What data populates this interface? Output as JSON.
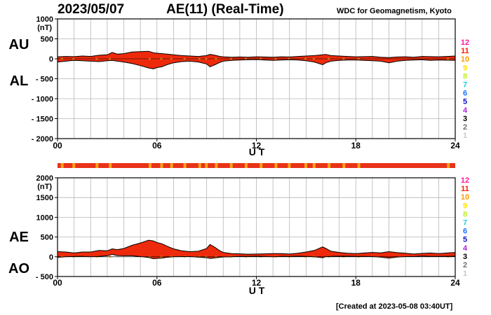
{
  "header": {
    "date": "2023/05/07",
    "title": "AE(11) (Real-Time)",
    "source": "WDC for Geomagnetism, Kyoto"
  },
  "footer": {
    "created": "[Created at 2023-05-08 03:40UT]"
  },
  "colors": {
    "fill": "#ee2a0c",
    "quality_fill": "#f7a21b",
    "bar_fill": "#e8321a"
  },
  "legend": {
    "levels": [
      {
        "label": "12",
        "color": "#ff1aa0"
      },
      {
        "label": "11",
        "color": "#ff1a00"
      },
      {
        "label": "10",
        "color": "#ff9b00"
      },
      {
        "label": "9",
        "color": "#ffe000"
      },
      {
        "label": "8",
        "color": "#c0f020"
      },
      {
        "label": "7",
        "color": "#20d0d0"
      },
      {
        "label": "6",
        "color": "#1e6fff"
      },
      {
        "label": "5",
        "color": "#1010c0"
      },
      {
        "label": "4",
        "color": "#b020e0"
      },
      {
        "label": "3",
        "color": "#000000"
      },
      {
        "label": "2",
        "color": "#707070"
      },
      {
        "label": "1",
        "color": "#c8c8c8"
      }
    ]
  },
  "chart_data": [
    {
      "type": "area",
      "id": "au-al",
      "label_upper": "AU",
      "label_lower": "AL",
      "unit": "(nT)",
      "xlabel": "U T",
      "xticks": [
        "00",
        "06",
        "12",
        "18",
        "24"
      ],
      "xlim": [
        0,
        24
      ],
      "ylim": [
        -2000,
        1000
      ],
      "yticks": [
        "1000",
        "500",
        "0",
        "- 500",
        "- 1000",
        "- 1500",
        "- 2000"
      ],
      "grid": true,
      "series": [
        {
          "name": "AU",
          "x": [
            0,
            0.5,
            1,
            1.5,
            2,
            2.5,
            3,
            3.3,
            3.6,
            4,
            4.5,
            5,
            5.5,
            5.8,
            6,
            6.3,
            6.6,
            7,
            7.5,
            8,
            8.5,
            9,
            9.2,
            9.5,
            9.8,
            10,
            10.5,
            11,
            11.5,
            12,
            12.5,
            13,
            13.5,
            14,
            14.5,
            15,
            15.5,
            16,
            16.2,
            16.5,
            17,
            17.5,
            18,
            18.5,
            19,
            19.5,
            20,
            20.5,
            21,
            21.5,
            22,
            22.5,
            23,
            23.5,
            24
          ],
          "values": [
            50,
            60,
            55,
            70,
            60,
            90,
            100,
            160,
            120,
            130,
            170,
            180,
            190,
            150,
            140,
            130,
            120,
            100,
            80,
            70,
            60,
            80,
            110,
            90,
            60,
            50,
            40,
            45,
            40,
            50,
            45,
            40,
            50,
            45,
            60,
            70,
            80,
            100,
            110,
            80,
            70,
            60,
            50,
            55,
            60,
            40,
            30,
            45,
            50,
            40,
            60,
            55,
            50,
            60,
            70
          ]
        },
        {
          "name": "AL",
          "x": [
            0,
            0.5,
            1,
            1.5,
            2,
            2.5,
            3,
            3.3,
            3.6,
            4,
            4.5,
            5,
            5.5,
            5.8,
            6,
            6.3,
            6.6,
            7,
            7.5,
            8,
            8.5,
            9,
            9.2,
            9.5,
            9.8,
            10,
            10.5,
            11,
            11.5,
            12,
            12.5,
            13,
            13.5,
            14,
            14.5,
            15,
            15.5,
            16,
            16.2,
            16.5,
            17,
            17.5,
            18,
            18.5,
            19,
            19.5,
            20,
            20.5,
            21,
            21.5,
            22,
            22.5,
            23,
            23.5,
            24
          ],
          "values": [
            -80,
            -60,
            -40,
            -50,
            -60,
            -70,
            -50,
            -40,
            -60,
            -80,
            -120,
            -170,
            -230,
            -250,
            -220,
            -200,
            -150,
            -100,
            -70,
            -60,
            -80,
            -130,
            -200,
            -150,
            -90,
            -60,
            -40,
            -30,
            -25,
            -20,
            -30,
            -40,
            -30,
            -25,
            -30,
            -50,
            -80,
            -150,
            -100,
            -60,
            -40,
            -30,
            -30,
            -40,
            -50,
            -60,
            -100,
            -60,
            -40,
            -30,
            -25,
            -40,
            -30,
            -35,
            -40
          ]
        }
      ]
    },
    {
      "type": "area",
      "id": "ae-ao",
      "label_upper": "AE",
      "label_lower": "AO",
      "unit": "(nT)",
      "xlabel": "U T",
      "xticks": [
        "00",
        "06",
        "12",
        "18",
        "24"
      ],
      "xlim": [
        0,
        24
      ],
      "ylim": [
        -500,
        2000
      ],
      "yticks": [
        "2000",
        "1500",
        "1000",
        "500",
        "0",
        "- 500"
      ],
      "grid": true,
      "series": [
        {
          "name": "AE",
          "x": [
            0,
            0.5,
            1,
            1.5,
            2,
            2.5,
            3,
            3.3,
            3.6,
            4,
            4.5,
            5,
            5.5,
            5.8,
            6,
            6.3,
            6.6,
            7,
            7.5,
            8,
            8.5,
            9,
            9.2,
            9.5,
            9.8,
            10,
            10.5,
            11,
            11.5,
            12,
            12.5,
            13,
            13.5,
            14,
            14.5,
            15,
            15.5,
            16,
            16.2,
            16.5,
            17,
            17.5,
            18,
            18.5,
            19,
            19.5,
            20,
            20.5,
            21,
            21.5,
            22,
            22.5,
            23,
            23.5,
            24
          ],
          "values": [
            130,
            120,
            95,
            120,
            120,
            160,
            150,
            200,
            180,
            210,
            290,
            350,
            420,
            400,
            360,
            330,
            270,
            200,
            150,
            130,
            140,
            210,
            310,
            240,
            150,
            110,
            80,
            75,
            65,
            70,
            75,
            80,
            80,
            70,
            90,
            120,
            160,
            250,
            210,
            140,
            110,
            90,
            80,
            95,
            110,
            100,
            130,
            105,
            90,
            70,
            85,
            95,
            80,
            95,
            110
          ]
        },
        {
          "name": "AO",
          "x": [
            0,
            0.5,
            1,
            1.5,
            2,
            2.5,
            3,
            3.3,
            3.6,
            4,
            4.5,
            5,
            5.5,
            5.8,
            6,
            6.3,
            6.6,
            7,
            7.5,
            8,
            8.5,
            9,
            9.2,
            9.5,
            9.8,
            10,
            10.5,
            11,
            11.5,
            12,
            12.5,
            13,
            13.5,
            14,
            14.5,
            15,
            15.5,
            16,
            16.2,
            16.5,
            17,
            17.5,
            18,
            18.5,
            19,
            19.5,
            20,
            20.5,
            21,
            21.5,
            22,
            22.5,
            23,
            23.5,
            24
          ],
          "values": [
            -15,
            0,
            8,
            10,
            0,
            10,
            25,
            60,
            30,
            25,
            25,
            5,
            -20,
            -50,
            -40,
            -35,
            -15,
            0,
            5,
            5,
            -10,
            -25,
            -45,
            -30,
            -15,
            -5,
            0,
            8,
            8,
            15,
            8,
            0,
            10,
            10,
            15,
            10,
            0,
            -25,
            5,
            10,
            15,
            15,
            10,
            8,
            5,
            -10,
            -35,
            -8,
            5,
            5,
            18,
            8,
            10,
            13,
            15
          ]
        }
      ]
    }
  ],
  "quality_bar": {
    "base": "#e8321a",
    "highlight": "#f7a21b",
    "highlight_hours": [
      0.2,
      0.9,
      2.3,
      3.1,
      5.5,
      6.2,
      6.8,
      7.6,
      8.5,
      8.9,
      9.5,
      10.4,
      11.3,
      12.2,
      13.1,
      13.9,
      14.9,
      15.4,
      16.3,
      17.2,
      18.1,
      23.5
    ]
  }
}
